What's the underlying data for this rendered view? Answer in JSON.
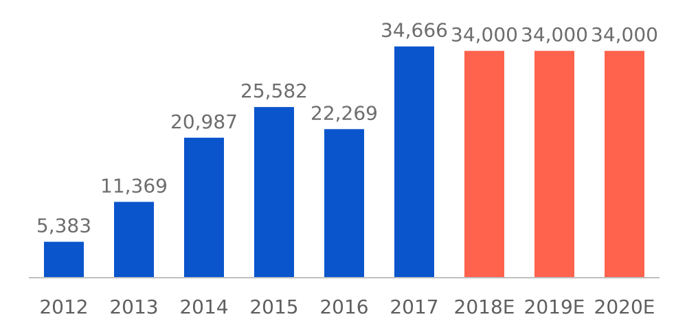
{
  "chart_data": {
    "type": "bar",
    "title": "",
    "xlabel": "",
    "ylabel": "",
    "categories": [
      "2012",
      "2013",
      "2014",
      "2015",
      "2016",
      "2017",
      "2018E",
      "2019E",
      "2020E"
    ],
    "values": [
      5383,
      11369,
      20987,
      25582,
      22269,
      34666,
      34000,
      34000,
      34000
    ],
    "value_labels": [
      "5,383",
      "11,369",
      "20,987",
      "25,582",
      "22,269",
      "34,666",
      "34,000",
      "34,000",
      "34,000"
    ],
    "estimated": [
      false,
      false,
      false,
      false,
      false,
      false,
      true,
      true,
      true
    ],
    "ylim": [
      0,
      37000
    ],
    "grid": false,
    "legend": "none",
    "colors": {
      "actual": "#0a55cc",
      "estimate": "#ff624d",
      "axis": "#bfbfbf"
    }
  }
}
